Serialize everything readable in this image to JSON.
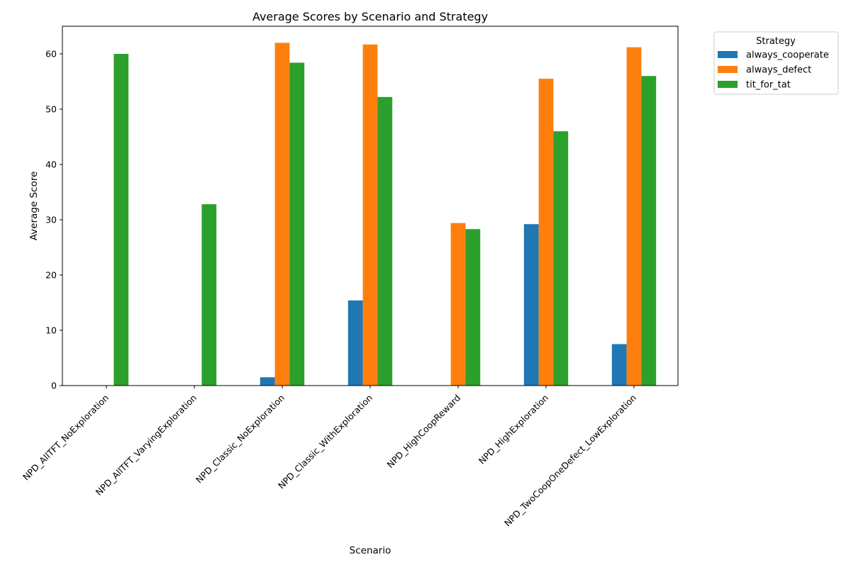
{
  "chart_data": {
    "type": "bar",
    "title": "Average Scores by Scenario and Strategy",
    "xlabel": "Scenario",
    "ylabel": "Average Score",
    "ylim": [
      0,
      65
    ],
    "yticks": [
      0,
      10,
      20,
      30,
      40,
      50,
      60
    ],
    "grid": false,
    "legend": {
      "title": "Strategy",
      "placement": "outside-top-right"
    },
    "categories": [
      "NPD_AllTFT_NoExploration",
      "NPD_AllTFT_VaryingExploration",
      "NPD_Classic_NoExploration",
      "NPD_Classic_WithExploration",
      "NPD_HighCoopReward",
      "NPD_HighExploration",
      "NPD_TwoCoopOneDefect_LowExploration"
    ],
    "series": [
      {
        "name": "always_cooperate",
        "color": "#1f77b4",
        "values": [
          0,
          0,
          1.5,
          15.4,
          0,
          29.2,
          7.5
        ]
      },
      {
        "name": "always_defect",
        "color": "#ff7f0e",
        "values": [
          0,
          0,
          62.0,
          61.7,
          29.4,
          55.5,
          61.2
        ]
      },
      {
        "name": "tit_for_tat",
        "color": "#2ca02c",
        "values": [
          60.0,
          32.8,
          58.4,
          52.2,
          28.3,
          46.0,
          56.0
        ]
      }
    ]
  }
}
